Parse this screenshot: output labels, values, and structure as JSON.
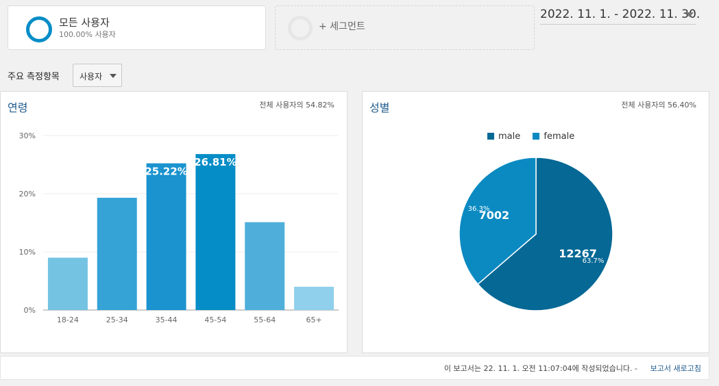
{
  "segments": {
    "primary": {
      "title": "모든 사용자",
      "subtitle": "100.00% 사용자",
      "ring_color": "#058dc7"
    },
    "add_label": "+ 세그먼트"
  },
  "date_range": "2022. 11. 1. - 2022. 11. 30.",
  "metric": {
    "label": "주요 측정항목",
    "selected": "사용자"
  },
  "age_panel": {
    "title": "연령",
    "share": "전체 사용자의 54.82%"
  },
  "gender_panel": {
    "title": "성별",
    "share": "전체 사용자의 56.40%"
  },
  "footer": {
    "text": "이 보고서는 22. 11. 1. 오전 11:07:04에 작성되었습니다. -",
    "refresh_label": "보고서 새로고침"
  },
  "chart_data": [
    {
      "type": "bar",
      "title": "연령",
      "categories": [
        "18-24",
        "25-34",
        "35-44",
        "45-54",
        "55-64",
        "65+"
      ],
      "values": [
        9.0,
        19.3,
        25.22,
        26.81,
        15.1,
        4.0
      ],
      "value_labels": [
        "",
        "",
        "25.22%",
        "26.81%",
        "",
        ""
      ],
      "bar_colors": [
        "#74c3e2",
        "#35a3d6",
        "#1a93cf",
        "#058dc7",
        "#4fafda",
        "#90d0ec"
      ],
      "ylim": [
        0,
        30
      ],
      "yticks": [
        0,
        10,
        20,
        30
      ],
      "ytick_labels": [
        "0%",
        "10%",
        "20%",
        "30%"
      ],
      "grid": true
    },
    {
      "type": "pie",
      "title": "성별",
      "labels": [
        "male",
        "female"
      ],
      "values": [
        12267,
        7002
      ],
      "percent_labels": [
        "63.7%",
        "36.3%"
      ],
      "colors": [
        "#056895",
        "#0b8ac2"
      ],
      "legend": "top"
    }
  ]
}
